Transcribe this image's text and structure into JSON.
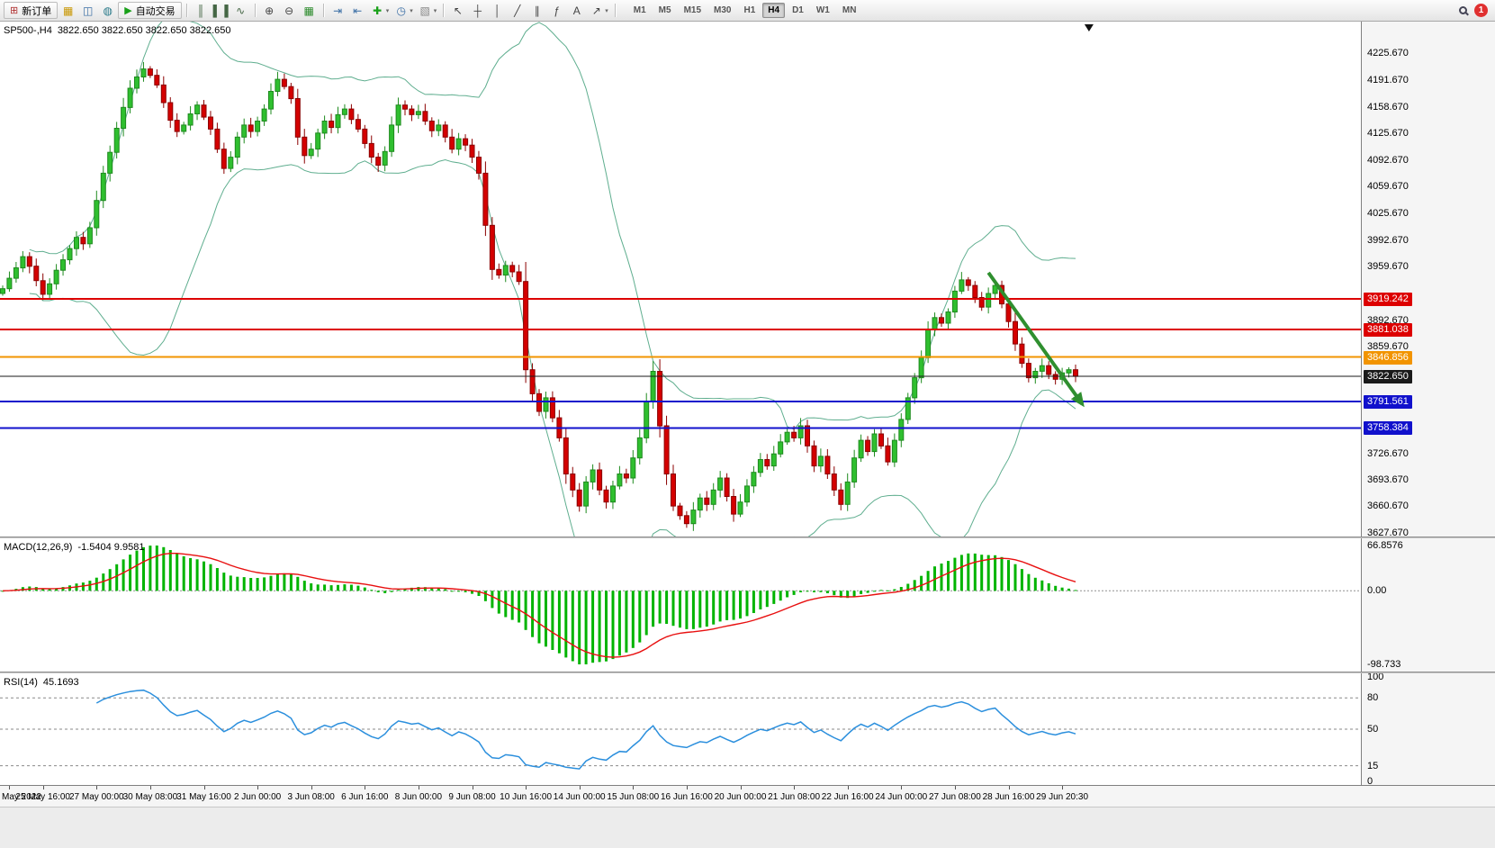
{
  "toolbar": {
    "notification_count": "1",
    "timeframes": [
      "M1",
      "M5",
      "M15",
      "M30",
      "H1",
      "H4",
      "D1",
      "W1",
      "MN"
    ],
    "active_timeframe": "H4",
    "items": [
      {
        "type": "button",
        "name": "new-order-button",
        "glyph": "⊞",
        "color": "#b03030",
        "label": "新订单"
      },
      {
        "type": "icon",
        "name": "new-chart-icon",
        "glyph": "▦",
        "color": "#c89600"
      },
      {
        "type": "icon",
        "name": "profiles-icon",
        "glyph": "◫",
        "color": "#3a6ea5"
      },
      {
        "type": "icon",
        "name": "market-watch-icon",
        "glyph": "◍",
        "color": "#2a7a8a"
      },
      {
        "type": "button",
        "name": "autotrading-button",
        "glyph": "▶",
        "color": "#18a018",
        "label": "自动交易"
      },
      {
        "type": "sep"
      },
      {
        "type": "icon",
        "name": "bar-chart-icon",
        "glyph": "║",
        "color": "#446644"
      },
      {
        "type": "icon",
        "name": "candlestick-chart-icon",
        "glyph": "▌▐",
        "color": "#446644"
      },
      {
        "type": "icon",
        "name": "line-chart-icon",
        "glyph": "∿",
        "color": "#446644"
      },
      {
        "type": "sep"
      },
      {
        "type": "icon",
        "name": "zoom-in-icon",
        "glyph": "⊕",
        "color": "#444444"
      },
      {
        "type": "icon",
        "name": "zoom-out-icon",
        "glyph": "⊖",
        "color": "#444444"
      },
      {
        "type": "icon",
        "name": "tile-windows-icon",
        "glyph": "▦",
        "color": "#2a8a2a"
      },
      {
        "type": "sep"
      },
      {
        "type": "icon",
        "name": "auto-scroll-icon",
        "glyph": "⇥",
        "color": "#3a6ea5"
      },
      {
        "type": "icon",
        "name": "chart-shift-icon",
        "glyph": "⇤",
        "color": "#3a6ea5"
      },
      {
        "type": "icon",
        "name": "add-indicator-icon",
        "glyph": "✚",
        "color": "#18a018",
        "caret": true
      },
      {
        "type": "icon",
        "name": "periods-icon",
        "glyph": "◷",
        "color": "#3a6ea5",
        "caret": true
      },
      {
        "type": "icon",
        "name": "template-icon",
        "glyph": "▧",
        "color": "#888888",
        "caret": true
      },
      {
        "type": "sep"
      },
      {
        "type": "icon",
        "name": "cursor-tool-icon",
        "glyph": "↖",
        "color": "#444444"
      },
      {
        "type": "icon",
        "name": "crosshair-tool-icon",
        "glyph": "┼",
        "color": "#444444"
      },
      {
        "type": "icon",
        "name": "vertical-line-tool-icon",
        "glyph": "│",
        "color": "#444444"
      },
      {
        "type": "icon",
        "name": "trendline-tool-icon",
        "glyph": "╱",
        "color": "#444444"
      },
      {
        "type": "icon",
        "name": "channel-tool-icon",
        "glyph": "∥",
        "color": "#444444"
      },
      {
        "type": "icon",
        "name": "fibonacci-tool-icon",
        "glyph": "ƒ",
        "color": "#444444"
      },
      {
        "type": "icon",
        "name": "text-tool-icon",
        "glyph": "A",
        "color": "#444444"
      },
      {
        "type": "icon",
        "name": "arrows-tool-icon",
        "glyph": "↗",
        "color": "#444444",
        "caret": true
      },
      {
        "type": "sep"
      }
    ]
  },
  "chart": {
    "symbol_label": "SP500-,H4",
    "ohlc_label": "3822.650 3822.650 3822.650 3822.650",
    "price_axis": {
      "max": 4265,
      "min": 3623,
      "labels": [
        "4225.670",
        "4191.670",
        "4158.670",
        "4125.670",
        "4092.670",
        "4059.670",
        "4025.670",
        "3992.670",
        "3959.670",
        "3892.670",
        "3859.670",
        "3726.670",
        "3693.670",
        "3660.670",
        "3627.670"
      ]
    },
    "levels": [
      {
        "text": "3919.242",
        "price": 3919.242,
        "color": "#dd0000",
        "width": 2
      },
      {
        "text": "3881.038",
        "price": 3881.038,
        "color": "#dd0000",
        "width": 2
      },
      {
        "text": "3846.856",
        "price": 3846.856,
        "color": "#f29400",
        "width": 2
      },
      {
        "text": "3822.650",
        "price": 3822.65,
        "color": "#1a1a1a",
        "width": 1
      },
      {
        "text": "3791.561",
        "price": 3791.561,
        "color": "#1111cc",
        "width": 2
      },
      {
        "text": "3758.384",
        "price": 3758.384,
        "color": "#1111cc",
        "width": 2
      }
    ],
    "arrow": {
      "from_bar": 147,
      "from_price": 3952,
      "to_bar": 161,
      "to_price": 3788,
      "color": "#2f8f2f"
    },
    "candle_up_color": "#2fbf2f",
    "candle_down_color": "#d40000"
  },
  "macd": {
    "label": "MACD(12,26,9)",
    "values": "-1.5404 9.9581",
    "axis_labels": [
      "66.8576",
      "0.00",
      "-98.733"
    ],
    "histogram_color": "#00b400",
    "signal_color": "#e81010"
  },
  "rsi": {
    "label": "RSI(14)",
    "value": "45.1693",
    "axis_labels": [
      {
        "text": "100",
        "value": 100
      },
      {
        "text": "80",
        "value": 80
      },
      {
        "text": "50",
        "value": 50
      },
      {
        "text": "15",
        "value": 15
      },
      {
        "text": "0",
        "value": 0
      }
    ],
    "levels": [
      80,
      50,
      15
    ],
    "line_color": "#2b8fdd"
  },
  "time_axis": {
    "labels": [
      {
        "text": "May 2022",
        "bar": 1
      },
      {
        "text": "25 May 16:00",
        "bar": 6
      },
      {
        "text": "27 May 00:00",
        "bar": 14
      },
      {
        "text": "30 May 08:00",
        "bar": 22
      },
      {
        "text": "31 May 16:00",
        "bar": 30
      },
      {
        "text": "2 Jun 00:00",
        "bar": 38
      },
      {
        "text": "3 Jun 08:00",
        "bar": 46
      },
      {
        "text": "6 Jun 16:00",
        "bar": 54
      },
      {
        "text": "8 Jun 00:00",
        "bar": 62
      },
      {
        "text": "9 Jun 08:00",
        "bar": 70
      },
      {
        "text": "10 Jun 16:00",
        "bar": 78
      },
      {
        "text": "14 Jun 00:00",
        "bar": 86
      },
      {
        "text": "15 Jun 08:00",
        "bar": 94
      },
      {
        "text": "16 Jun 16:00",
        "bar": 102
      },
      {
        "text": "20 Jun 00:00",
        "bar": 110
      },
      {
        "text": "21 Jun 08:00",
        "bar": 118
      },
      {
        "text": "22 Jun 16:00",
        "bar": 126
      },
      {
        "text": "24 Jun 00:00",
        "bar": 134
      },
      {
        "text": "27 Jun 08:00",
        "bar": 142
      },
      {
        "text": "28 Jun 16:00",
        "bar": 150
      },
      {
        "text": "29 Jun 20:30",
        "bar": 158
      }
    ]
  },
  "chart_data": {
    "type": "candlestick",
    "symbol": "SP500-",
    "timeframe": "H4",
    "closes": [
      3932,
      3945,
      3958,
      3972,
      3960,
      3942,
      3925,
      3938,
      3955,
      3968,
      3982,
      3996,
      3988,
      4008,
      4042,
      4076,
      4102,
      4132,
      4158,
      4182,
      4196,
      4206,
      4198,
      4186,
      4164,
      4142,
      4128,
      4136,
      4150,
      4161,
      4146,
      4131,
      4106,
      4082,
      4096,
      4121,
      4136,
      4128,
      4141,
      4156,
      4178,
      4193,
      4184,
      4169,
      4121,
      4098,
      4106,
      4126,
      4141,
      4133,
      4149,
      4156,
      4143,
      4131,
      4113,
      4096,
      4086,
      4103,
      4136,
      4161,
      4156,
      4149,
      4153,
      4141,
      4129,
      4136,
      4121,
      4106,
      4119,
      4111,
      4096,
      4076,
      4011,
      3956,
      3949,
      3961,
      3953,
      3941,
      3831,
      3801,
      3779,
      3796,
      3771,
      3746,
      3701,
      3681,
      3661,
      3691,
      3706,
      3681,
      3666,
      3686,
      3701,
      3696,
      3721,
      3746,
      3791,
      3829,
      3761,
      3701,
      3661,
      3649,
      3639,
      3656,
      3671,
      3663,
      3681,
      3696,
      3673,
      3651,
      3666,
      3686,
      3703,
      3719,
      3711,
      3726,
      3741,
      3753,
      3746,
      3761,
      3736,
      3711,
      3723,
      3701,
      3681,
      3663,
      3691,
      3721,
      3743,
      3729,
      3751,
      3736,
      3716,
      3743,
      3769,
      3796,
      3821,
      3846,
      3881,
      3896,
      3889,
      3903,
      3929,
      3943,
      3936,
      3921,
      3909,
      3926,
      3936,
      3913,
      3891,
      3863,
      3839,
      3821,
      3829,
      3836,
      3825,
      3819,
      3827,
      3831,
      3822.65
    ],
    "indicators": {
      "bollinger": {
        "period": 20,
        "deviation": 2,
        "color": "#5fae8f"
      },
      "macd": {
        "fast": 12,
        "slow": 26,
        "signal": 9
      },
      "rsi": {
        "period": 14
      }
    }
  }
}
